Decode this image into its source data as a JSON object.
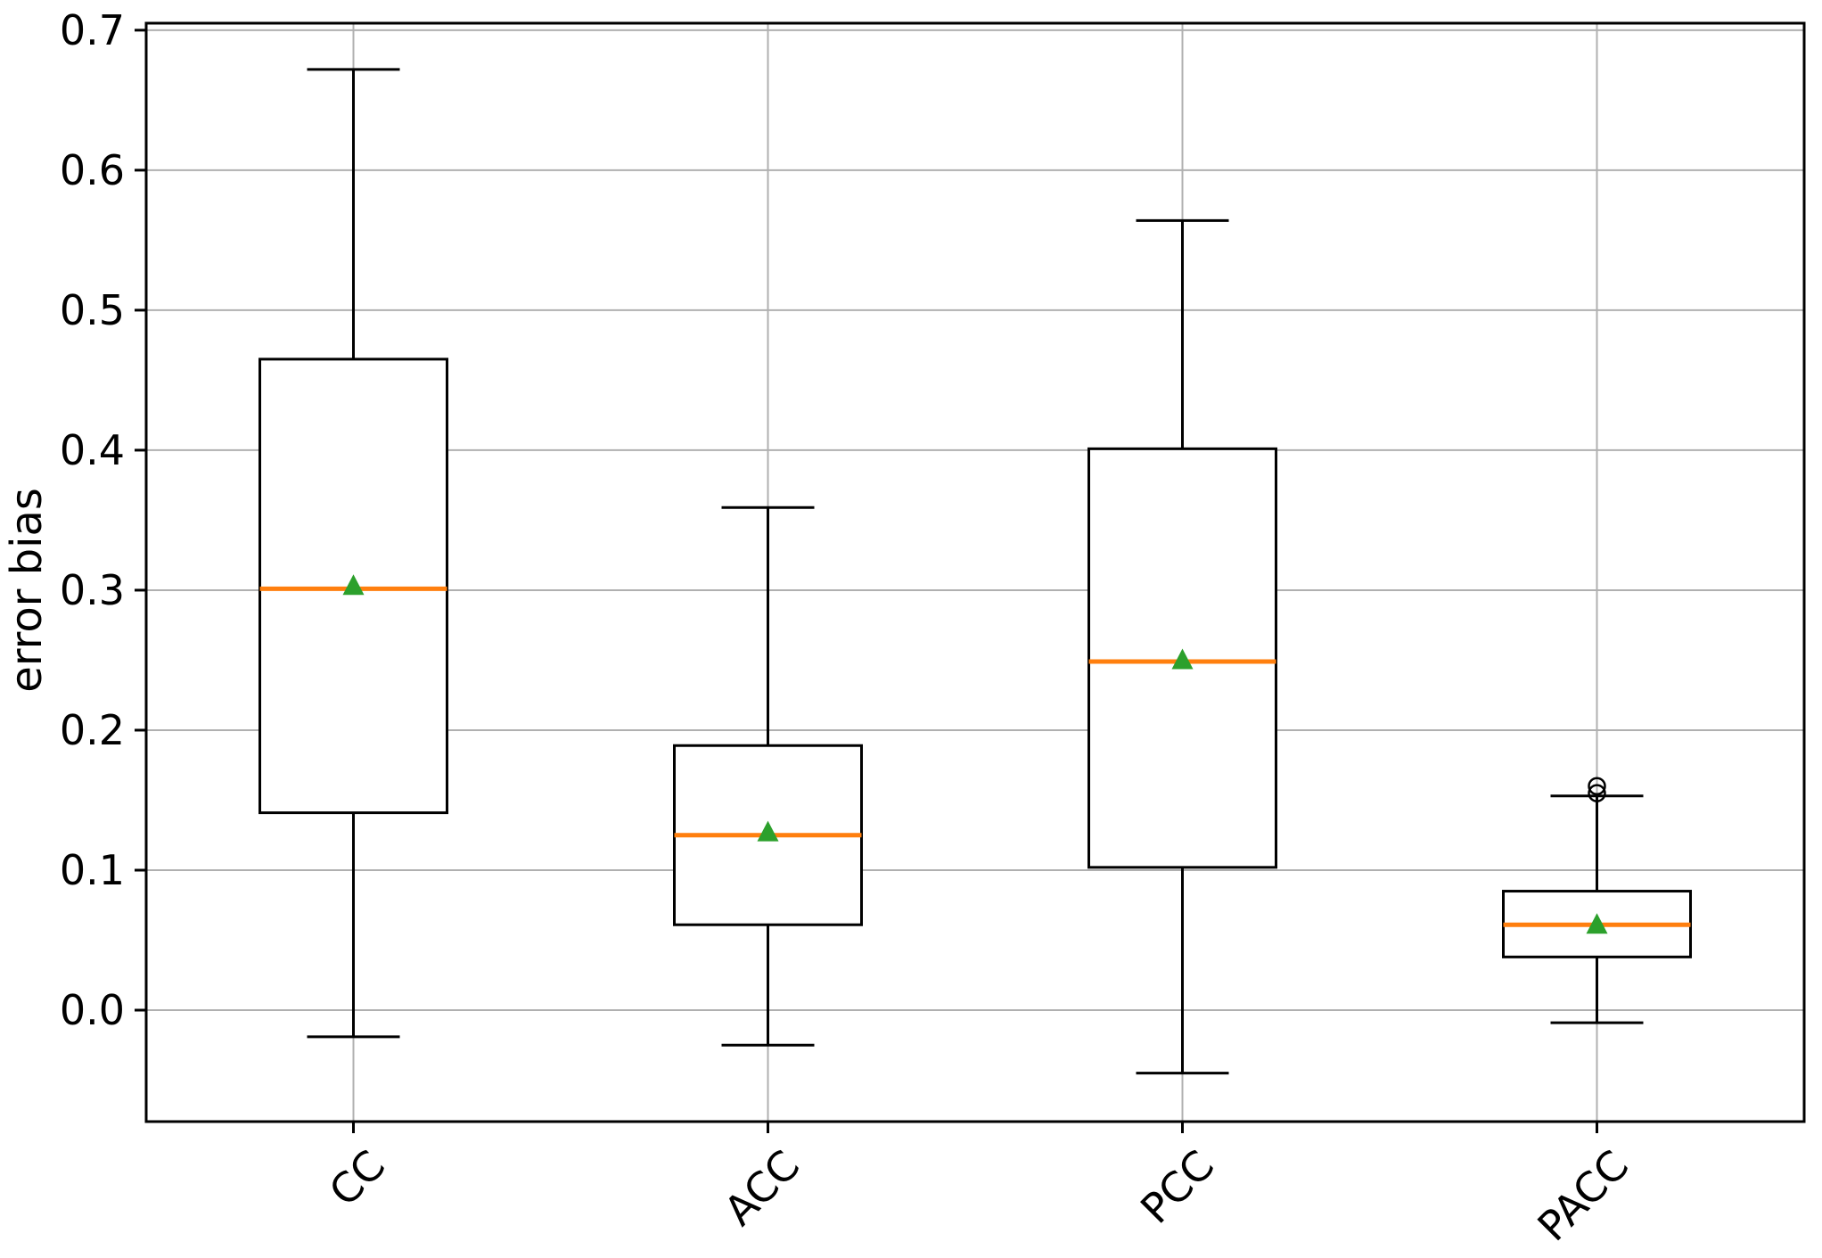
{
  "figure": {
    "background": "#ffffff"
  },
  "chart_data": {
    "type": "boxplot",
    "title": "",
    "xlabel": "",
    "ylabel": "error bias",
    "categories": [
      "CC",
      "ACC",
      "PCC",
      "PACC"
    ],
    "x_tick_rotation": 45,
    "grid": true,
    "legend": "none",
    "ylim": [
      -0.0796,
      0.705
    ],
    "yticks": [
      0.0,
      0.1,
      0.2,
      0.3,
      0.4,
      0.5,
      0.6,
      0.7
    ],
    "ytick_labels": [
      "0.0",
      "0.1",
      "0.2",
      "0.3",
      "0.4",
      "0.5",
      "0.6",
      "0.7"
    ],
    "colors": {
      "box_stroke": "#000000",
      "median": "#ff7f0e",
      "mean_marker": "#2ca02c",
      "grid": "#b0b0b0",
      "outlier_stroke": "#000000",
      "spine": "#000000",
      "tick_label": "#000000"
    },
    "marker_shapes": {
      "mean": "triangle-up",
      "outlier": "open-circle"
    },
    "series": [
      {
        "name": "CC",
        "whisker_low": -0.019,
        "q1": 0.141,
        "median": 0.301,
        "mean": 0.303,
        "q3": 0.465,
        "whisker_high": 0.672,
        "outliers": []
      },
      {
        "name": "ACC",
        "whisker_low": -0.025,
        "q1": 0.061,
        "median": 0.125,
        "mean": 0.127,
        "q3": 0.189,
        "whisker_high": 0.359,
        "outliers": []
      },
      {
        "name": "PCC",
        "whisker_low": -0.045,
        "q1": 0.102,
        "median": 0.249,
        "mean": 0.25,
        "q3": 0.401,
        "whisker_high": 0.564,
        "outliers": []
      },
      {
        "name": "PACC",
        "whisker_low": -0.009,
        "q1": 0.038,
        "median": 0.061,
        "mean": 0.061,
        "q3": 0.085,
        "whisker_high": 0.153,
        "outliers": [
          0.155,
          0.16
        ]
      }
    ]
  }
}
